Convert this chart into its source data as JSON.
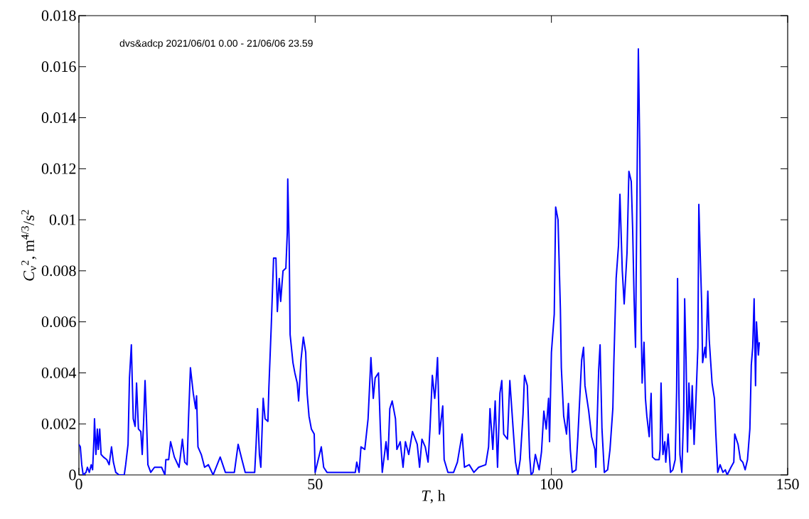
{
  "chart_data": {
    "type": "line",
    "xlabel": "*T*, h",
    "ylabel": "*C*$_{ν}$$^{2}$, m$^{4/3}$/s$^{2}$",
    "annotations": [
      "dvs&adcp 2021/06/01 0.00 - 21/06/06 23.59"
    ],
    "xlim": [
      0,
      150
    ],
    "xticks": [
      0,
      50,
      100,
      150
    ],
    "ylim": [
      0,
      0.018
    ],
    "yticks": [
      0,
      0.002,
      0.004,
      0.006,
      0.008,
      0.01,
      0.012,
      0.014,
      0.016,
      0.018
    ],
    "line_style": "solid",
    "series": [
      {
        "color": "#0000ff",
        "x": [
          0,
          0.3,
          0.6,
          0.9,
          1.5,
          1.8,
          2.2,
          2.6,
          2.9,
          3.2,
          3.3,
          3.6,
          3.9,
          4.1,
          4.4,
          4.7,
          5.2,
          5.9,
          6.4,
          6.9,
          7.3,
          7.8,
          8.5,
          9.6,
          9.9,
          10.4,
          10.7,
          11.1,
          11.3,
          11.5,
          11.9,
          12.2,
          12.6,
          13.1,
          13.4,
          13.7,
          14.0,
          14.3,
          14.6,
          15.2,
          16.0,
          17.5,
          18.2,
          18.4,
          19.0,
          19.4,
          20.2,
          21.2,
          21.9,
          22.4,
          22.9,
          23.2,
          23.6,
          24.2,
          24.7,
          24.9,
          25.2,
          25.9,
          26.6,
          27.4,
          28.4,
          29.9,
          31.0,
          32.9,
          33.7,
          34.5,
          35.2,
          37.2,
          37.5,
          37.8,
          38.2,
          38.5,
          39.0,
          39.4,
          40.0,
          40.2,
          40.7,
          41.2,
          41.7,
          42.0,
          42.4,
          42.7,
          43.2,
          43.8,
          44.1,
          44.2,
          44.5,
          44.7,
          45.3,
          45.7,
          46.2,
          46.5,
          47.0,
          47.5,
          48.0,
          48.3,
          48.7,
          49.2,
          49.8,
          50.0,
          51.3,
          51.8,
          52.5,
          55.0,
          58.5,
          58.8,
          59.3,
          59.7,
          60.5,
          61.2,
          61.8,
          62.3,
          62.7,
          63.4,
          63.8,
          64.2,
          65.0,
          65.4,
          65.8,
          66.3,
          67.0,
          67.3,
          68.0,
          68.6,
          69.1,
          69.8,
          70.6,
          71.6,
          72.1,
          72.6,
          73.3,
          73.9,
          74.3,
          74.8,
          75.3,
          75.5,
          75.9,
          76.3,
          77.0,
          77.3,
          78.1,
          79.3,
          80.1,
          81.1,
          81.6,
          82.6,
          83.6,
          84.6,
          86.1,
          86.7,
          87.0,
          87.6,
          88.1,
          88.6,
          89.1,
          89.5,
          89.9,
          90.7,
          91.2,
          91.9,
          92.4,
          92.9,
          93.4,
          94.0,
          94.3,
          94.9,
          95.4,
          95.7,
          96.1,
          96.6,
          97.4,
          97.9,
          98.4,
          98.9,
          99.4,
          99.6,
          100.0,
          100.6,
          100.9,
          101.4,
          101.9,
          102.1,
          102.6,
          103.2,
          103.6,
          104.0,
          104.4,
          105.2,
          105.6,
          106.4,
          106.8,
          107.1,
          107.9,
          108.5,
          109.2,
          109.4,
          110.0,
          110.3,
          110.7,
          111.2,
          111.9,
          112.4,
          113.0,
          113.2,
          113.7,
          114.2,
          114.5,
          115.0,
          115.4,
          116.0,
          116.4,
          116.9,
          117.2,
          117.5,
          117.8,
          118.1,
          118.4,
          118.7,
          119.0,
          119.2,
          119.6,
          119.9,
          120.2,
          120.7,
          121.1,
          121.4,
          122.0,
          122.8,
          123.0,
          123.2,
          123.6,
          124.0,
          124.2,
          124.7,
          125.2,
          125.7,
          126.2,
          126.5,
          126.7,
          127.0,
          127.2,
          127.6,
          128.0,
          128.2,
          128.5,
          128.8,
          129.1,
          129.5,
          129.8,
          130.2,
          130.6,
          131.0,
          131.2,
          131.5,
          131.8,
          132.0,
          132.5,
          132.7,
          133.1,
          133.4,
          134.0,
          134.5,
          134.8,
          135.2,
          135.7,
          136.3,
          136.8,
          137.2,
          138.0,
          138.6,
          138.8,
          139.5,
          140.0,
          140.5,
          141.0,
          141.5,
          142.0,
          142.3,
          142.6,
          142.9,
          143.2,
          143.4,
          143.8,
          144.0
        ],
        "values": [
          0.0012,
          0.0011,
          0.0004,
          0,
          0.0001,
          0.0003,
          0.0001,
          0.0004,
          0.0002,
          0.0015,
          0.0022,
          0.0008,
          0.0018,
          0.001,
          0.0018,
          0.0008,
          0.0007,
          0.0006,
          0.0004,
          0.0011,
          0.0005,
          0.0001,
          0,
          0,
          0.0004,
          0.0012,
          0.0038,
          0.0051,
          0.0036,
          0.0022,
          0.0019,
          0.0036,
          0.0018,
          0.0017,
          0.0008,
          0.0021,
          0.0037,
          0.0022,
          0.0004,
          0.0001,
          0.0003,
          0.0003,
          0,
          0.0006,
          0.0006,
          0.0013,
          0.0007,
          0.0003,
          0.0014,
          0.0005,
          0.0004,
          0.0022,
          0.0042,
          0.0032,
          0.0026,
          0.0031,
          0.0011,
          0.0008,
          0.0003,
          0.0004,
          0,
          0.0007,
          0.0001,
          0.0001,
          0.0012,
          0.0006,
          0.0001,
          0.0001,
          0.0012,
          0.0026,
          0.0008,
          0.0003,
          0.003,
          0.0022,
          0.0021,
          0.0034,
          0.0058,
          0.0085,
          0.0085,
          0.0064,
          0.0077,
          0.0068,
          0.008,
          0.0081,
          0.0095,
          0.0116,
          0.009,
          0.0055,
          0.0044,
          0.004,
          0.0036,
          0.0029,
          0.0045,
          0.0054,
          0.0048,
          0.0032,
          0.0023,
          0.0018,
          0.0016,
          0.0001,
          0.0011,
          0.0003,
          0.0001,
          0.0001,
          0.0001,
          0.0005,
          0.0001,
          0.0011,
          0.001,
          0.0022,
          0.0046,
          0.003,
          0.0038,
          0.004,
          0.0018,
          0.0001,
          0.0013,
          0.0006,
          0.0026,
          0.0029,
          0.0022,
          0.001,
          0.0013,
          0.0003,
          0.0013,
          0.0008,
          0.0017,
          0.0012,
          0.0003,
          0.0014,
          0.0011,
          0.0005,
          0.0018,
          0.0039,
          0.003,
          0.0034,
          0.0046,
          0.0016,
          0.0027,
          0.0006,
          0.0001,
          0.0001,
          0.0005,
          0.0016,
          0.0003,
          0.0004,
          0.0001,
          0.0003,
          0.0004,
          0.0011,
          0.0026,
          0.001,
          0.0029,
          0.0003,
          0.0032,
          0.0037,
          0.0016,
          0.0014,
          0.0037,
          0.0018,
          0.0005,
          0,
          0.0006,
          0.0024,
          0.0039,
          0.0035,
          0.0007,
          0,
          0.0001,
          0.0008,
          0.0002,
          0.0009,
          0.0025,
          0.0018,
          0.003,
          0.0013,
          0.0048,
          0.0063,
          0.0105,
          0.01,
          0.0065,
          0.0042,
          0.0023,
          0.0016,
          0.0028,
          0.001,
          0.0001,
          0.0002,
          0.0015,
          0.0045,
          0.005,
          0.0035,
          0.0025,
          0.0015,
          0.001,
          0.0003,
          0.0041,
          0.0051,
          0.0018,
          0.0001,
          0.0002,
          0.001,
          0.0026,
          0.0043,
          0.0077,
          0.009,
          0.011,
          0.008,
          0.0067,
          0.0087,
          0.0119,
          0.0115,
          0.0096,
          0.0069,
          0.005,
          0.011,
          0.0167,
          0.0128,
          0.006,
          0.0036,
          0.0052,
          0.003,
          0.0023,
          0.0015,
          0.0032,
          0.0007,
          0.0006,
          0.0006,
          0.001,
          0.0036,
          0.0008,
          0.0013,
          0.0005,
          0.0016,
          0.0001,
          0.0002,
          0.0006,
          0.0033,
          0.0077,
          0.003,
          0.0008,
          0.0001,
          0.0025,
          0.0069,
          0.0045,
          0.0009,
          0.0036,
          0.0018,
          0.0035,
          0.0012,
          0.003,
          0.005,
          0.0106,
          0.0086,
          0.0067,
          0.0044,
          0.005,
          0.0046,
          0.0072,
          0.0053,
          0.0036,
          0.003,
          0.0016,
          0.0001,
          0.0004,
          0.0001,
          0.0002,
          0,
          0.0003,
          0.0005,
          0.0016,
          0.0012,
          0.0006,
          0.0005,
          0.0002,
          0.0006,
          0.0018,
          0.0043,
          0.005,
          0.0069,
          0.0035,
          0.006,
          0.0047,
          0.0052
        ]
      }
    ]
  }
}
